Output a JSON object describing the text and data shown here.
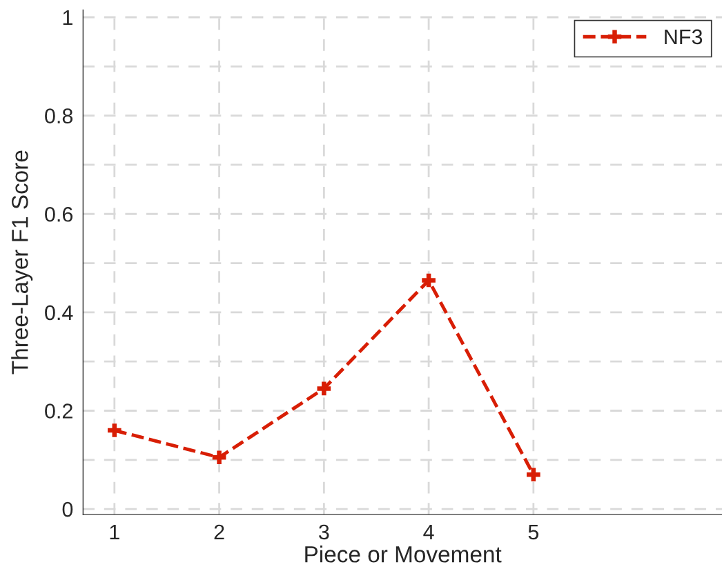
{
  "chart_data": {
    "type": "line",
    "xlabel": "Piece or Movement",
    "ylabel": "Three-Layer F1 Score",
    "x": [
      1,
      2,
      3,
      4,
      5
    ],
    "series": [
      {
        "name": "NF3",
        "color": "#d81e05",
        "values": [
          0.16,
          0.105,
          0.245,
          0.465,
          0.07
        ]
      }
    ],
    "xlim": [
      0.7,
      6.8
    ],
    "xticks": [
      1,
      2,
      3,
      4,
      5
    ],
    "ylim": [
      -0.011,
      1.015
    ],
    "yticks": [
      0,
      {
        "value": 0.1,
        "label": null
      },
      0.2,
      {
        "value": 0.3,
        "label": null
      },
      0.4,
      {
        "value": 0.5,
        "label": null
      },
      0.6,
      {
        "value": 0.7,
        "label": null
      },
      0.8,
      {
        "value": 0.9,
        "label": null
      },
      1
    ],
    "grid": true,
    "legend": "top right",
    "marker": "cross",
    "line_style": "dashed"
  }
}
